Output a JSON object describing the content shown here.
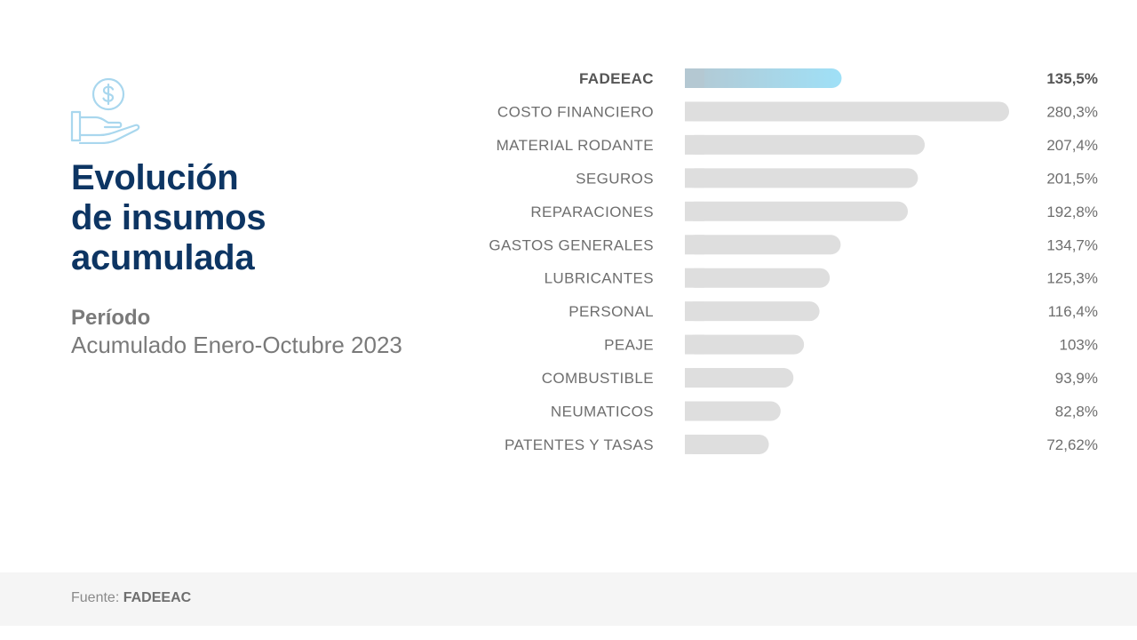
{
  "header": {
    "title_line1": "Evolución",
    "title_line2": "de insumos",
    "title_line3": "acumulada",
    "period_label": "Período",
    "period_value": "Acumulado Enero-Octubre 2023"
  },
  "footer": {
    "source_label": "Fuente:",
    "source_name": "FADEEAC"
  },
  "icons": {
    "hero": "hand-holding-dollar-icon"
  },
  "colors": {
    "title": "#0d3563",
    "bar": "#dedede",
    "highlight_start": "#b4c8d2",
    "highlight_end": "#9fe0f7",
    "label": "#6e6e6e"
  },
  "chart_data": {
    "type": "bar",
    "orientation": "horizontal",
    "highlight": "FADEEAC",
    "categories": [
      "FADEEAC",
      "COSTO FINANCIERO",
      "MATERIAL RODANTE",
      "SEGUROS",
      "REPARACIONES",
      "GASTOS GENERALES",
      "LUBRICANTES",
      "PERSONAL",
      "PEAJE",
      "COMBUSTIBLE",
      "NEUMATICOS",
      "PATENTES Y TASAS"
    ],
    "values": [
      135.5,
      280.3,
      207.4,
      201.5,
      192.8,
      134.7,
      125.3,
      116.4,
      103,
      93.9,
      82.8,
      72.62
    ],
    "value_labels": [
      "135,5%",
      "280,3%",
      "207,4%",
      "201,5%",
      "192,8%",
      "134,7%",
      "125,3%",
      "116,4%",
      "103%",
      "93,9%",
      "82,8%",
      "72,62%"
    ],
    "grid": false,
    "legend": "none"
  }
}
